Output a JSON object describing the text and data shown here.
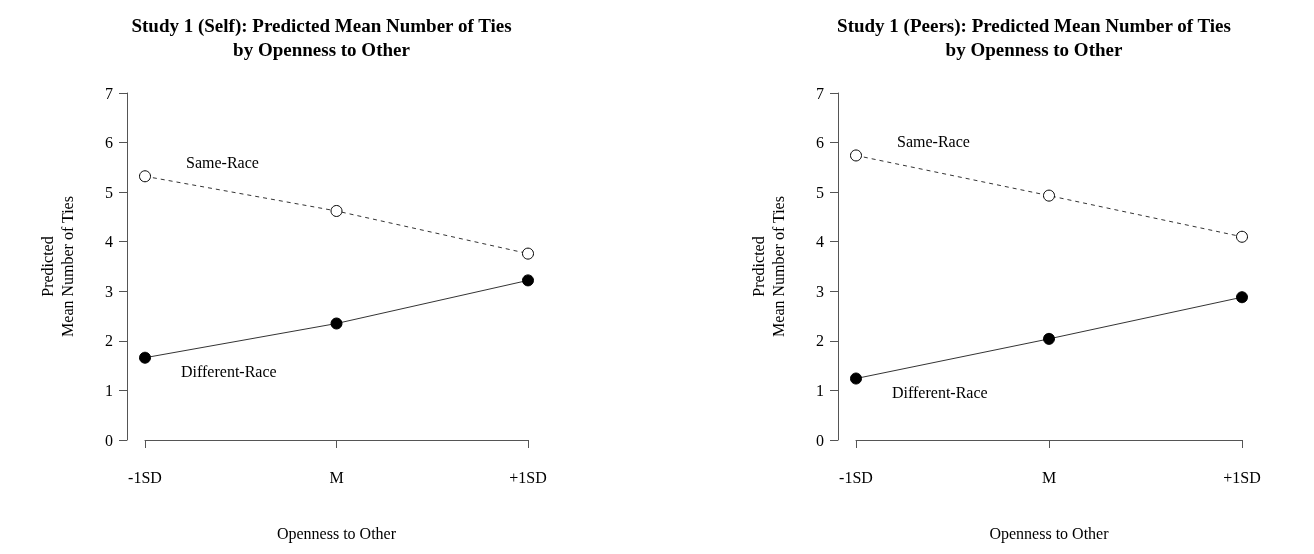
{
  "chart_data": [
    {
      "type": "line",
      "title": "Study 1 (Self): Predicted Mean Number of Ties\nby Openness to Other",
      "xlabel": "Openness to Other",
      "ylabel": "Predicted\nMean Number of Ties",
      "categories": [
        "-1SD",
        "M",
        "+1SD"
      ],
      "ylim": [
        0,
        7
      ],
      "yticks": [
        0,
        1,
        2,
        3,
        4,
        5,
        6,
        7
      ],
      "grid": false,
      "legend": false,
      "series": [
        {
          "name": "Same-Race",
          "color": "#000000",
          "values": [
            5.32,
            4.62,
            3.76
          ],
          "line_style": "dashed",
          "marker": "open circle"
        },
        {
          "name": "Different-Race",
          "color": "#000000",
          "values": [
            1.66,
            2.35,
            3.22
          ],
          "line_style": "solid",
          "marker": "circle"
        }
      ]
    },
    {
      "type": "line",
      "title": "Study 1 (Peers): Predicted Mean Number of Ties\nby Openness to Other",
      "xlabel": "Openness to Other",
      "ylabel": "Predicted\nMean Number of Ties",
      "categories": [
        "-1SD",
        "M",
        "+1SD"
      ],
      "ylim": [
        0,
        7
      ],
      "yticks": [
        0,
        1,
        2,
        3,
        4,
        5,
        6,
        7
      ],
      "grid": false,
      "legend": false,
      "series": [
        {
          "name": "Same-Race",
          "color": "#000000",
          "values": [
            5.74,
            4.93,
            4.1
          ],
          "line_style": "dashed",
          "marker": "open circle"
        },
        {
          "name": "Different-Race",
          "color": "#000000",
          "values": [
            1.24,
            2.04,
            2.88
          ],
          "line_style": "solid",
          "marker": "circle"
        }
      ]
    }
  ]
}
